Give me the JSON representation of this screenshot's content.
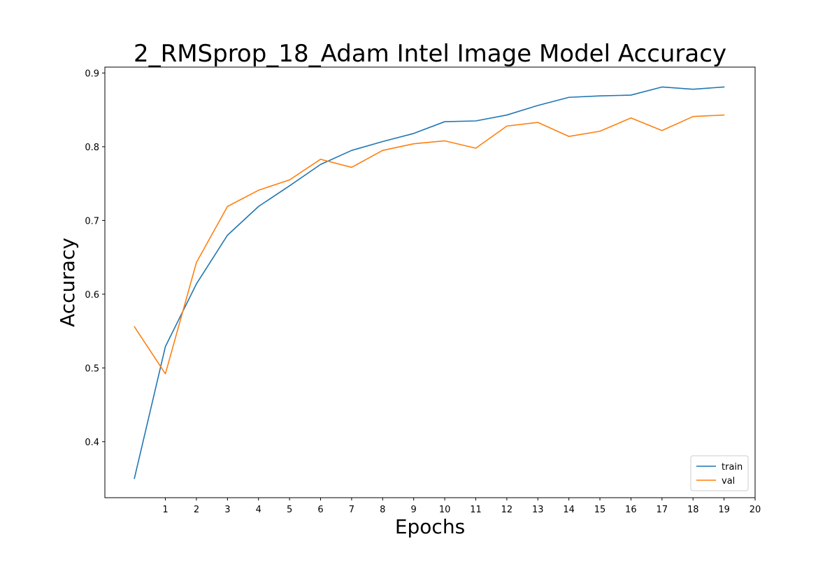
{
  "chart_data": {
    "type": "line",
    "title": "2_RMSprop_18_Adam Intel Image Model Accuracy",
    "xlabel": "Epochs",
    "ylabel": "Accuracy",
    "xlim": [
      -0.95,
      20
    ],
    "ylim": [
      0.324,
      0.908
    ],
    "xticks": [
      1,
      2,
      3,
      4,
      5,
      6,
      7,
      8,
      9,
      10,
      11,
      12,
      13,
      14,
      15,
      16,
      17,
      18,
      19,
      20
    ],
    "yticks": [
      0.4,
      0.5,
      0.6,
      0.7,
      0.8,
      0.9
    ],
    "x": [
      0,
      1,
      2,
      3,
      4,
      5,
      6,
      7,
      8,
      9,
      10,
      11,
      12,
      13,
      14,
      15,
      16,
      17,
      18,
      19
    ],
    "series": [
      {
        "name": "train",
        "color": "#1f77b4",
        "values": [
          0.35,
          0.529,
          0.614,
          0.68,
          0.719,
          0.747,
          0.776,
          0.795,
          0.807,
          0.818,
          0.834,
          0.835,
          0.843,
          0.856,
          0.867,
          0.869,
          0.87,
          0.881,
          0.878,
          0.881
        ]
      },
      {
        "name": "val",
        "color": "#ff7f0e",
        "values": [
          0.556,
          0.492,
          0.643,
          0.719,
          0.741,
          0.755,
          0.783,
          0.772,
          0.795,
          0.804,
          0.808,
          0.798,
          0.828,
          0.833,
          0.814,
          0.821,
          0.839,
          0.822,
          0.841,
          0.843
        ]
      }
    ],
    "grid": false,
    "legend": "bottom-right"
  }
}
